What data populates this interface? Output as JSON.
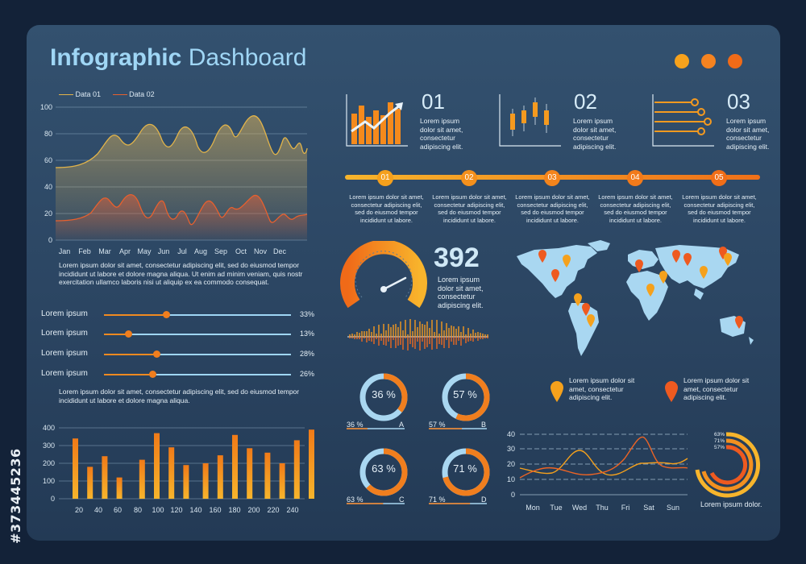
{
  "watermark": "#373445236",
  "title": {
    "bold": "Infographic",
    "light": "Dashboard"
  },
  "window_dots": [
    "#f7a21c",
    "#f58320",
    "#f06b18"
  ],
  "legend": [
    {
      "name": "Data 01",
      "color": "#e2b44a"
    },
    {
      "name": "Data 02",
      "color": "#e8602e"
    }
  ],
  "wave_chart": {
    "y_ticks": [
      "100",
      "80",
      "60",
      "40",
      "20",
      "0"
    ],
    "months": [
      "Jan",
      "Feb",
      "Mar",
      "Apr",
      "May",
      "Jun",
      "Jul",
      "Aug",
      "Sep",
      "Oct",
      "Nov",
      "Dec"
    ]
  },
  "para1": "Lorem ipsum dolor sit amet, consectetur adipiscing elit, sed do eiusmod tempor incididunt ut labore et dolore magna aliqua. Ut enim ad minim veniam, quis nostr exercitation ullamco laboris nisi ut aliquip ex ea commodo consequat.",
  "sliders": [
    {
      "label": "Lorem ipsum",
      "value": "33%",
      "level": 0.33
    },
    {
      "label": "Lorem ipsum",
      "value": "13%",
      "level": 0.13
    },
    {
      "label": "Lorem ipsum",
      "value": "28%",
      "level": 0.28
    },
    {
      "label": "Lorem ipsum",
      "value": "26%",
      "level": 0.26
    }
  ],
  "para2": "Lorem ipsum dolor sit amet, consectetur adipiscing elit, sed do eiusmod tempor incididunt ut labore et dolore magna aliqua.",
  "bar_chart": {
    "y_ticks": [
      "400",
      "300",
      "200",
      "100",
      "0"
    ],
    "x_ticks": [
      "20",
      "40",
      "60",
      "80",
      "100",
      "120",
      "140",
      "160",
      "180",
      "200",
      "220",
      "240"
    ],
    "values": [
      340,
      180,
      240,
      120,
      220,
      370,
      290,
      190,
      200,
      245,
      360,
      285,
      260,
      200,
      330,
      390
    ]
  },
  "cards": [
    {
      "num": "01",
      "text": "Lorem ipsum dolor sit amet, consectetur adipiscing elit."
    },
    {
      "num": "02",
      "text": "Lorem ipsum dolor sit amet, consectetur adipiscing elit."
    },
    {
      "num": "03",
      "text": "Lorem ipsum dolor sit amet, consectetur adipiscing elit."
    }
  ],
  "timeline": {
    "steps": [
      "01",
      "02",
      "03",
      "04",
      "05"
    ],
    "texts": [
      "Lorem ipsum dolor sit amet, consectetur adipiscing elit, sed do eiusmod tempor incididunt ut labore.",
      "Lorem ipsum dolor sit amet, consectetur adipiscing elit, sed do eiusmod tempor incididunt ut labore.",
      "Lorem ipsum dolor sit amet, consectetur adipiscing elit, sed do eiusmod tempor incididunt ut labore.",
      "Lorem ipsum dolor sit amet, consectetur adipiscing elit, sed do eiusmod tempor incididunt ut labore.",
      "Lorem ipsum dolor sit amet, consectetur adipiscing elit, sed do eiusmod tempor incididunt ut labore."
    ]
  },
  "gauge": {
    "value": "392",
    "text": "Lorem ipsum dolor sit amet, consectetur adipiscing elit.",
    "level": 0.75
  },
  "donuts": [
    {
      "center": "36 %",
      "label": "36 %",
      "letter": "A",
      "level": 0.36
    },
    {
      "center": "57 %",
      "label": "57 %",
      "letter": "B",
      "level": 0.57
    },
    {
      "center": "63 %",
      "label": "63 %",
      "letter": "C",
      "level": 0.63
    },
    {
      "center": "71 %",
      "label": "71 %",
      "letter": "D",
      "level": 0.71
    }
  ],
  "map_legend": [
    {
      "text": "Lorem ipsum dolor sit amet, consectetur adipiscing elit.",
      "color": "#f5a11c"
    },
    {
      "text": "Lorem ipsum dolor sit amet, consectetur adipiscing elit.",
      "color": "#ee5a20"
    }
  ],
  "week_chart": {
    "y_ticks": [
      "40",
      "30",
      "20",
      "10",
      "0"
    ],
    "days": [
      "Mon",
      "Tue",
      "Wed",
      "Thu",
      "Fri",
      "Sat",
      "Sun"
    ]
  },
  "rings": {
    "labels": [
      "63%",
      "71%",
      "57%"
    ],
    "caption": "Lorem ipsum dolor."
  }
}
